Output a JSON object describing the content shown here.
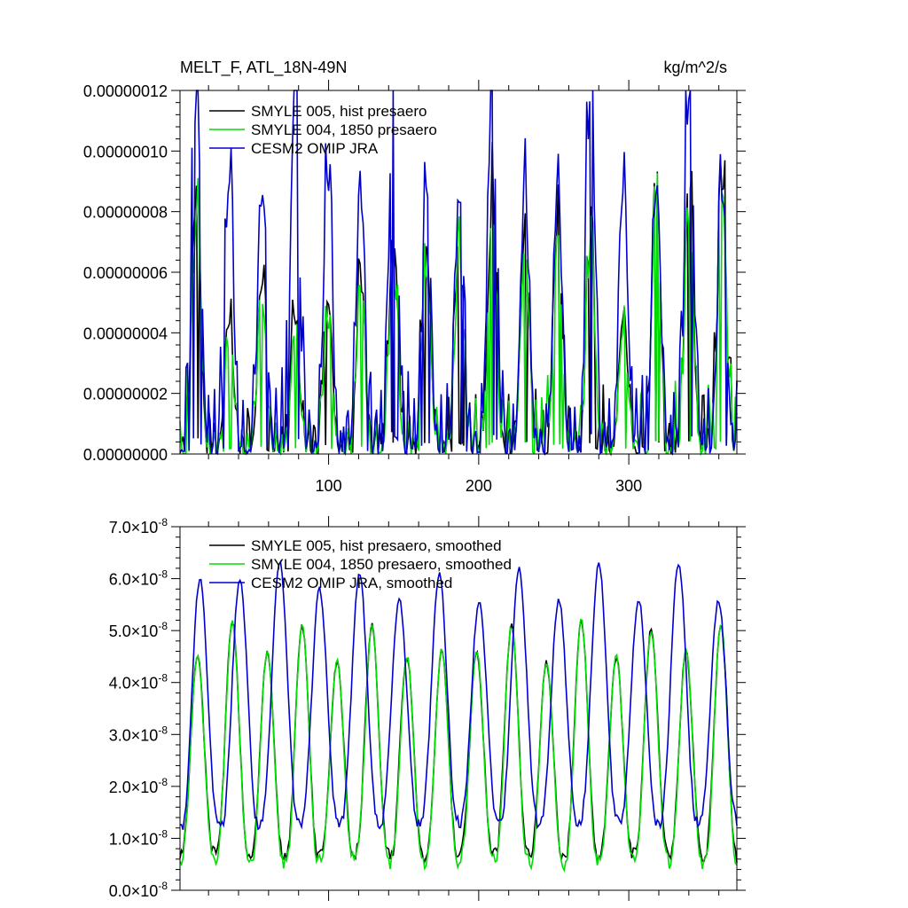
{
  "chart_data": [
    {
      "type": "line",
      "title_left": "MELT_F, ATL_18N-49N",
      "title_right": "kg/m^2/s",
      "xlim": [
        1,
        372
      ],
      "ylim": [
        0,
        1.2e-07
      ],
      "x_ticks": [
        100,
        200,
        300
      ],
      "y_tick_labels": [
        "0.00000000",
        "0.00000002",
        "0.00000004",
        "0.00000006",
        "0.00000008",
        "0.00000010",
        "0.00000012"
      ],
      "series": [
        {
          "name": "SMYLE 005, hist presaero",
          "color": "#000000",
          "annual_peaks": [
            8.5e-08,
            4.3e-08,
            5.4e-08,
            4.3e-08,
            5e-08,
            5.5e-08,
            7e-08,
            6.7e-08,
            7e-08,
            7.8e-08,
            7.3e-08,
            7.5e-08,
            7.2e-08,
            4.5e-08,
            8.6e-08,
            8.3e-08,
            8.6e-08
          ]
        },
        {
          "name": "SMYLE 004, 1850 presaero",
          "color": "#00dd00",
          "annual_peaks": [
            7.5e-08,
            3.6e-08,
            4.9e-08,
            3.8e-08,
            4.2e-08,
            5e-08,
            6e-08,
            5.8e-08,
            6.2e-08,
            7.4e-08,
            6.6e-08,
            7e-08,
            6.6e-08,
            4e-08,
            8.6e-08,
            7.5e-08,
            8.6e-08
          ]
        },
        {
          "name": "CESM2 OMIP JRA",
          "color": "#0000cc",
          "annual_peaks": [
            1.15e-07,
            8.9e-08,
            8.3e-08,
            1.22e-07,
            8.8e-08,
            8.3e-08,
            1.19e-07,
            8.6e-08,
            8.3e-08,
            1.2e-07,
            8.4e-08,
            8.4e-08,
            1.18e-07,
            8.6e-08,
            8.6e-08,
            1.17e-07,
            8.3e-08
          ]
        }
      ]
    },
    {
      "type": "line",
      "ylim": [
        0,
        7e-08
      ],
      "xlim": [
        1,
        372
      ],
      "y_tick_mantissas": [
        "0.0",
        "1.0",
        "2.0",
        "3.0",
        "4.0",
        "5.0",
        "6.0",
        "7.0"
      ],
      "y_tick_times": "×",
      "y_tick_base": "10",
      "y_tick_exponent": "-8",
      "series": [
        {
          "name": "SMYLE 005, hist presaero, smoothed",
          "color": "#000000",
          "annual_peaks": [
            4.5e-08,
            5.2e-08,
            4.6e-08,
            5.1e-08,
            4.4e-08,
            5.1e-08,
            4.5e-08,
            4.6e-08,
            4.6e-08,
            5.1e-08,
            4.4e-08,
            5.2e-08,
            4.5e-08,
            5e-08,
            4.6e-08,
            5.1e-08
          ],
          "annual_troughs": [
            7e-09,
            6e-09,
            7e-09,
            6e-09,
            7e-09,
            6e-09,
            7e-09,
            6e-09
          ]
        },
        {
          "name": "SMYLE 004, 1850 presaero, smoothed",
          "color": "#00dd00",
          "annual_peaks": [
            4.5e-08,
            5.2e-08,
            4.6e-08,
            5.1e-08,
            4.4e-08,
            5.1e-08,
            4.5e-08,
            4.6e-08,
            4.6e-08,
            5.1e-08,
            4.4e-08,
            5.2e-08,
            4.5e-08,
            5e-08,
            4.6e-08,
            5.1e-08
          ],
          "annual_troughs": [
            6e-09,
            5e-09,
            6e-09,
            5e-09,
            6e-09,
            5e-09,
            6e-09,
            5e-09
          ]
        },
        {
          "name": "CESM2 OMIP JRA, smoothed",
          "color": "#0000cc",
          "annual_peaks": [
            6e-08,
            6e-08,
            6.3e-08,
            5.8e-08,
            6.1e-08,
            5.6e-08,
            6.1e-08,
            5.6e-08,
            6.2e-08,
            5.6e-08,
            6.3e-08,
            5.6e-08,
            6.3e-08,
            5.6e-08
          ],
          "annual_troughs": [
            1.2e-08,
            1.3e-08,
            1.3e-08,
            1.3e-08,
            1.3e-08,
            1.3e-08,
            1.3e-08,
            1.3e-08
          ]
        }
      ]
    }
  ]
}
